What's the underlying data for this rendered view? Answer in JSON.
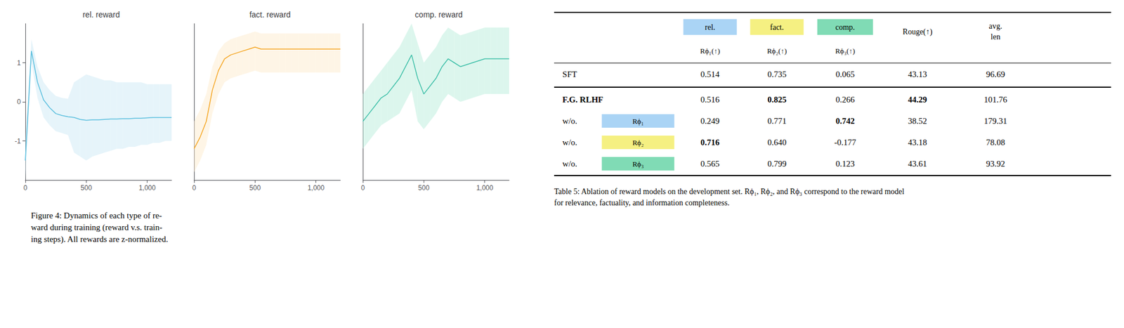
{
  "chart_data": [
    {
      "type": "line",
      "title": "rel. reward",
      "x": [
        0,
        50,
        100,
        150,
        200,
        250,
        300,
        350,
        400,
        450,
        500,
        550,
        600,
        650,
        700,
        750,
        800,
        850,
        900,
        950,
        1000,
        1050,
        1100,
        1150,
        1200
      ],
      "values": [
        -1.5,
        1.3,
        0.5,
        0.05,
        -0.15,
        -0.3,
        -0.35,
        -0.38,
        -0.4,
        -0.45,
        -0.47,
        -0.46,
        -0.46,
        -0.45,
        -0.44,
        -0.44,
        -0.43,
        -0.43,
        -0.42,
        -0.42,
        -0.41,
        -0.4,
        -0.4,
        -0.4,
        -0.4
      ],
      "upper": [
        -1.0,
        1.6,
        0.9,
        0.5,
        0.3,
        0.15,
        0.1,
        0.08,
        0.5,
        0.6,
        0.7,
        0.65,
        0.6,
        0.55,
        0.55,
        0.5,
        0.5,
        0.5,
        0.5,
        0.5,
        0.45,
        0.45,
        0.45,
        0.45,
        0.45
      ],
      "lower": [
        -2.0,
        1.0,
        0.1,
        -0.4,
        -0.6,
        -0.75,
        -0.8,
        -0.85,
        -1.3,
        -1.4,
        -1.5,
        -1.4,
        -1.35,
        -1.3,
        -1.25,
        -1.2,
        -1.2,
        -1.15,
        -1.15,
        -1.1,
        -1.1,
        -1.05,
        -1.05,
        -1.0,
        -1.0
      ],
      "color": "#5bbfde",
      "band_color": "#c8e6f5",
      "xlim": [
        0,
        1200
      ],
      "xticks": [
        0,
        500,
        1000
      ],
      "ylim": [
        -2,
        2
      ],
      "yticks": [
        -1,
        0,
        1
      ],
      "grid": false
    },
    {
      "type": "line",
      "title": "fact. reward",
      "x": [
        0,
        50,
        100,
        150,
        200,
        250,
        300,
        350,
        400,
        450,
        500,
        550,
        600,
        650,
        700,
        750,
        800,
        850,
        900,
        950,
        1000,
        1050,
        1100,
        1150,
        1200
      ],
      "values": [
        -1.2,
        -0.9,
        -0.5,
        0.3,
        0.8,
        1.1,
        1.2,
        1.25,
        1.3,
        1.35,
        1.4,
        1.35,
        1.35,
        1.35,
        1.35,
        1.35,
        1.35,
        1.35,
        1.35,
        1.35,
        1.35,
        1.35,
        1.35,
        1.35,
        1.35
      ],
      "upper": [
        -0.5,
        -0.2,
        0.2,
        0.9,
        1.3,
        1.5,
        1.6,
        1.65,
        1.7,
        1.75,
        1.8,
        1.75,
        1.75,
        1.75,
        1.75,
        1.75,
        1.75,
        1.75,
        1.75,
        1.75,
        1.75,
        1.75,
        1.75,
        1.75,
        1.75
      ],
      "lower": [
        -1.8,
        -1.5,
        -1.1,
        -0.3,
        0.2,
        0.5,
        0.6,
        0.65,
        0.7,
        0.75,
        0.8,
        0.75,
        0.75,
        0.75,
        0.75,
        0.75,
        0.75,
        0.75,
        0.75,
        0.75,
        0.75,
        0.75,
        0.75,
        0.75,
        0.75
      ],
      "color": "#f5a623",
      "band_color": "#fde8c8",
      "xlim": [
        0,
        1200
      ],
      "xticks": [
        0,
        500,
        1000
      ],
      "ylim": [
        -2,
        2
      ],
      "tick_labels": "x",
      "grid": false
    },
    {
      "type": "line",
      "title": "comp. reward",
      "x": [
        0,
        50,
        100,
        150,
        200,
        250,
        300,
        350,
        400,
        450,
        500,
        550,
        600,
        650,
        700,
        750,
        800,
        850,
        900,
        950,
        1000,
        1050,
        1100,
        1150,
        1200
      ],
      "values": [
        -0.5,
        -0.3,
        -0.1,
        0.1,
        0.2,
        0.4,
        0.6,
        0.9,
        1.2,
        0.6,
        0.2,
        0.4,
        0.6,
        0.9,
        1.1,
        1.0,
        0.9,
        0.95,
        1.0,
        1.05,
        1.1,
        1.1,
        1.1,
        1.1,
        1.1
      ],
      "upper": [
        0.2,
        0.4,
        0.6,
        0.8,
        1.0,
        1.2,
        1.4,
        1.7,
        2.0,
        1.5,
        1.0,
        1.2,
        1.4,
        1.7,
        1.9,
        1.8,
        1.7,
        1.75,
        1.8,
        1.85,
        1.9,
        1.9,
        1.9,
        1.9,
        1.9
      ],
      "lower": [
        -1.2,
        -1.0,
        -0.8,
        -0.6,
        -0.5,
        -0.4,
        -0.3,
        0.0,
        0.3,
        -0.5,
        -0.7,
        -0.5,
        -0.3,
        0.0,
        0.2,
        0.1,
        0.0,
        0.05,
        0.1,
        0.15,
        0.2,
        0.2,
        0.2,
        0.2,
        0.2
      ],
      "color": "#3dbfa8",
      "band_color": "#b2ead8",
      "xlim": [
        0,
        1200
      ],
      "xticks": [
        0,
        500,
        1000
      ],
      "ylim": [
        -2,
        2
      ],
      "tick_labels": "x",
      "grid": false
    }
  ],
  "fig_caption": "Figure 4: Dynamics of each type of re-\nward during training (reward v.s. train-\ning steps). All rewards are z-normalized.",
  "table": {
    "columns": [
      {
        "label": "rel.",
        "sub": "Rϕ₁(↑)",
        "color": "#aad4f5"
      },
      {
        "label": "fact.",
        "sub": "Rϕ₂(↑)",
        "color": "#f5f082"
      },
      {
        "label": "comp.",
        "sub": "Rϕ₃(↑)",
        "color": "#80dbb5"
      },
      {
        "label": "Rouge(↑)"
      },
      {
        "label": "avg.\nlen"
      }
    ],
    "rows": [
      {
        "label": "SFT",
        "bold_label": false,
        "values": [
          "0.514",
          "0.735",
          "0.065",
          "43.13",
          "96.69"
        ],
        "bold": [
          false,
          false,
          false,
          false,
          false
        ]
      },
      {
        "label": "F.G. RLHF",
        "bold_label": true,
        "values": [
          "0.516",
          "0.825",
          "0.266",
          "44.29",
          "101.76"
        ],
        "bold": [
          false,
          true,
          false,
          true,
          false
        ]
      },
      {
        "label": "w/o.",
        "bold_label": false,
        "tag": "Rϕ₁",
        "tag_color": "#aad4f5",
        "values": [
          "0.249",
          "0.771",
          "0.742",
          "38.52",
          "179.31"
        ],
        "bold": [
          false,
          false,
          true,
          false,
          false
        ]
      },
      {
        "label": "w/o.",
        "bold_label": false,
        "tag": "Rϕ₂",
        "tag_color": "#f5f082",
        "values": [
          "0.716",
          "0.640",
          "-0.177",
          "43.18",
          "78.08"
        ],
        "bold": [
          true,
          false,
          false,
          false,
          false
        ]
      },
      {
        "label": "w/o.",
        "bold_label": false,
        "tag": "Rϕ₃",
        "tag_color": "#80dbb5",
        "values": [
          "0.565",
          "0.799",
          "0.123",
          "43.61",
          "93.92"
        ],
        "bold": [
          false,
          false,
          false,
          false,
          false
        ]
      }
    ],
    "caption": "Table 5: Ablation of reward models on the development set. Rϕ₁, Rϕ₂, and Rϕ₃ correspond to the reward model\nfor relevance, factuality, and information completeness."
  }
}
